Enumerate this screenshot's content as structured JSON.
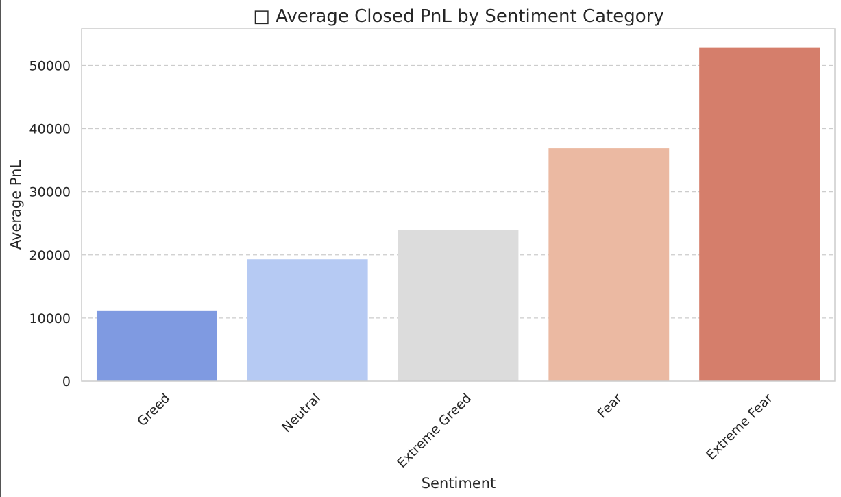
{
  "chart_data": {
    "type": "bar",
    "title": "□ Average Closed PnL by Sentiment Category",
    "xlabel": "Sentiment",
    "ylabel": "Average PnL",
    "categories": [
      "Greed",
      "Neutral",
      "Extreme Greed",
      "Fear",
      "Extreme Fear"
    ],
    "values": [
      11200,
      19300,
      23900,
      36900,
      52800
    ],
    "colors": [
      "#7f9ae1",
      "#b6caf3",
      "#dcdcdc",
      "#ebb9a2",
      "#d57e6b"
    ],
    "ylim": [
      0,
      55800
    ],
    "yticks": [
      0,
      10000,
      20000,
      30000,
      40000,
      50000
    ],
    "ytick_labels": [
      "0",
      "10000",
      "20000",
      "30000",
      "40000",
      "50000"
    ],
    "grid": "y-dashed",
    "legend": "none"
  }
}
